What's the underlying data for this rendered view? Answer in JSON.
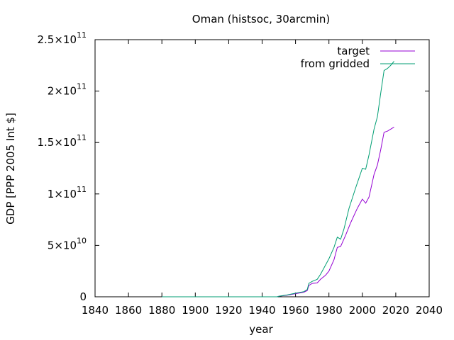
{
  "chart_data": {
    "type": "line",
    "title": "Oman (histsoc, 30arcmin)",
    "xlabel": "year",
    "ylabel": "GDP [PPP 2005 Int $]",
    "xlim": [
      1840,
      2040
    ],
    "ylim": [
      0,
      250000000000
    ],
    "x_ticks": [
      1840,
      1860,
      1880,
      1900,
      1920,
      1940,
      1960,
      1980,
      2000,
      2020,
      2040
    ],
    "x_tick_labels": [
      "1840",
      "1860",
      "1880",
      "1900",
      "1920",
      "1940",
      "1960",
      "1980",
      "2000",
      "2020",
      "2040"
    ],
    "y_ticks": [
      {
        "value": 0,
        "mantissa": "0",
        "exponent": ""
      },
      {
        "value": 50000000000,
        "mantissa": "5×10",
        "exponent": "10"
      },
      {
        "value": 100000000000,
        "mantissa": "1×10",
        "exponent": "11"
      },
      {
        "value": 150000000000,
        "mantissa": "1.5×10",
        "exponent": "11"
      },
      {
        "value": 200000000000,
        "mantissa": "2×10",
        "exponent": "11"
      },
      {
        "value": 250000000000,
        "mantissa": "2.5×10",
        "exponent": "11"
      }
    ],
    "grid": false,
    "legend_position": "top-right",
    "series": [
      {
        "name": "target",
        "color": "#9400d3",
        "points": [
          [
            1880,
            0
          ],
          [
            1900,
            0
          ],
          [
            1920,
            0
          ],
          [
            1940,
            0
          ],
          [
            1949,
            0
          ],
          [
            1950,
            500000000
          ],
          [
            1955,
            1500000000
          ],
          [
            1960,
            3000000000
          ],
          [
            1965,
            4500000000
          ],
          [
            1967,
            6000000000
          ],
          [
            1968,
            11000000000
          ],
          [
            1970,
            13000000000
          ],
          [
            1973,
            13500000000
          ],
          [
            1975,
            17000000000
          ],
          [
            1978,
            21000000000
          ],
          [
            1980,
            25000000000
          ],
          [
            1983,
            36000000000
          ],
          [
            1985,
            48000000000
          ],
          [
            1987,
            49000000000
          ],
          [
            1990,
            60000000000
          ],
          [
            1993,
            72000000000
          ],
          [
            1997,
            86000000000
          ],
          [
            2000,
            95000000000
          ],
          [
            2002,
            91000000000
          ],
          [
            2004,
            97000000000
          ],
          [
            2007,
            119000000000
          ],
          [
            2009,
            128000000000
          ],
          [
            2011,
            143000000000
          ],
          [
            2013,
            160000000000
          ],
          [
            2015,
            161000000000
          ],
          [
            2017,
            163000000000
          ],
          [
            2019,
            165000000000
          ]
        ]
      },
      {
        "name": "from gridded",
        "color": "#009e73",
        "points": [
          [
            1880,
            0
          ],
          [
            1900,
            0
          ],
          [
            1920,
            0
          ],
          [
            1940,
            0
          ],
          [
            1949,
            0
          ],
          [
            1950,
            500000000
          ],
          [
            1955,
            1800000000
          ],
          [
            1960,
            3500000000
          ],
          [
            1965,
            5000000000
          ],
          [
            1967,
            7000000000
          ],
          [
            1968,
            13000000000
          ],
          [
            1970,
            15000000000
          ],
          [
            1973,
            17000000000
          ],
          [
            1975,
            22000000000
          ],
          [
            1978,
            31000000000
          ],
          [
            1980,
            37000000000
          ],
          [
            1983,
            48000000000
          ],
          [
            1985,
            58000000000
          ],
          [
            1987,
            56000000000
          ],
          [
            1989,
            66000000000
          ],
          [
            1992,
            86000000000
          ],
          [
            1996,
            106000000000
          ],
          [
            2000,
            125000000000
          ],
          [
            2002,
            124000000000
          ],
          [
            2004,
            138000000000
          ],
          [
            2007,
            163000000000
          ],
          [
            2009,
            175000000000
          ],
          [
            2011,
            198000000000
          ],
          [
            2013,
            220000000000
          ],
          [
            2015,
            222000000000
          ],
          [
            2017,
            225000000000
          ],
          [
            2019,
            229000000000
          ]
        ]
      }
    ]
  }
}
